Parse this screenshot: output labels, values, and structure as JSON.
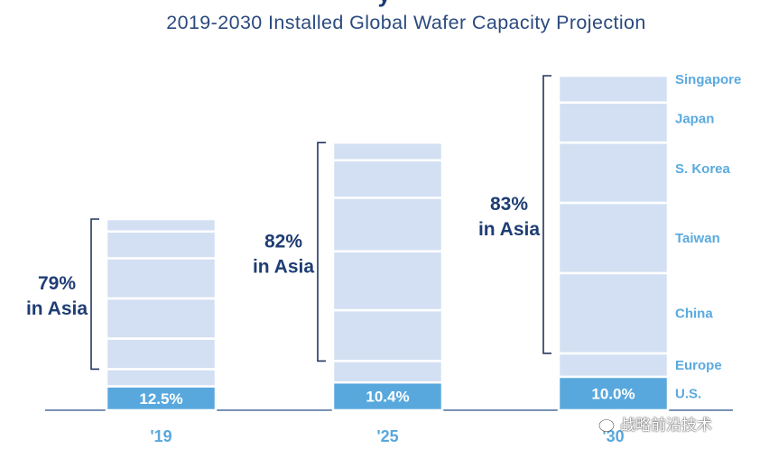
{
  "title_fragment": "y",
  "subtitle": "2019-2030 Installed Global Wafer Capacity Projection",
  "watermark": "战略前沿技术",
  "colors": {
    "segment": "#d3e0f3",
    "segment_border": "#ffffff",
    "us_segment": "#58a8de",
    "us_text": "#ffffff",
    "axis_label": "#58a8de",
    "region_label": "#5aaadf",
    "asia_text": "#1f3d74",
    "bracket": "#22365c",
    "axis_line": "#4a6e9a"
  },
  "chart_data": {
    "type": "stacked-bar",
    "title": "2019-2030 Installed Global Wafer Capacity Projection",
    "categories": [
      "'19",
      "'25",
      "'30"
    ],
    "regions_bottom_to_top": [
      "U.S.",
      "Europe",
      "China",
      "Taiwan",
      "S. Korea",
      "Japan",
      "Singapore"
    ],
    "relative_totals": [
      100,
      140,
      175
    ],
    "series": [
      {
        "name": "U.S.",
        "values": [
          12.5,
          10.4,
          10.0
        ],
        "labels": [
          "12.5%",
          "10.4%",
          "10.0%"
        ]
      },
      {
        "name": "Europe",
        "values": [
          9,
          8,
          7
        ]
      },
      {
        "name": "China",
        "values": [
          16,
          19,
          24
        ]
      },
      {
        "name": "Taiwan",
        "values": [
          21,
          22,
          21
        ]
      },
      {
        "name": "S. Korea",
        "values": [
          21,
          20,
          18
        ]
      },
      {
        "name": "Japan",
        "values": [
          14,
          14,
          12
        ]
      },
      {
        "name": "Singapore",
        "values": [
          6.5,
          6.6,
          8
        ]
      }
    ],
    "asia_share": [
      {
        "percent": "79%",
        "label": "in Asia"
      },
      {
        "percent": "82%",
        "label": "in Asia"
      },
      {
        "percent": "83%",
        "label": "in Asia"
      }
    ],
    "legend_position": "right",
    "grid": false
  }
}
